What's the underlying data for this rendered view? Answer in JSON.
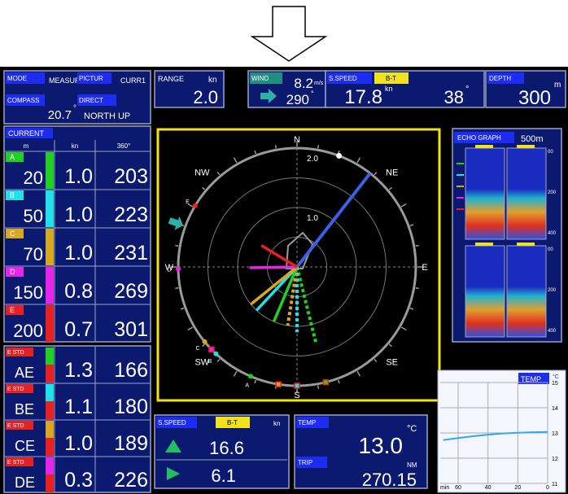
{
  "status": {
    "mode_label": "MODE",
    "mode": "MEASURE",
    "picture_label": "PICTUR",
    "picture": "CURR1",
    "compass_label": "COMPASS",
    "compass": "20.7",
    "compass_unit": "°",
    "direct_label": "DIRECT",
    "direct": "NORTH UP"
  },
  "range": {
    "label": "RANGE",
    "unit": "kn",
    "value": "2.0"
  },
  "wind": {
    "label": "WIND",
    "speed": "8.2",
    "speed_unit": "m/s",
    "direction": "290",
    "direction_unit": "°",
    "color": "#2cb0a8"
  },
  "ship_speed": {
    "label": "S.SPEED",
    "mode": "B-T",
    "speed": "17.8",
    "unit": "kn",
    "heading": "38",
    "heading_unit": "°",
    "heading_color": "#3a62e6"
  },
  "depth": {
    "label": "DEPTH",
    "unit": "m",
    "value": "300"
  },
  "current": {
    "title": "CURRENT",
    "columns": [
      "m",
      "kn",
      "360°"
    ],
    "rows": [
      {
        "label": "A",
        "depth": "20",
        "speed": "1.0",
        "direction": "203",
        "color": "#22d022"
      },
      {
        "label": "B",
        "depth": "50",
        "speed": "1.0",
        "direction": "223",
        "color": "#22e0e8"
      },
      {
        "label": "C",
        "depth": "70",
        "speed": "1.0",
        "direction": "231",
        "color": "#d8a820"
      },
      {
        "label": "D",
        "depth": "150",
        "speed": "0.8",
        "direction": "269",
        "color": "#e824e8"
      },
      {
        "label": "E",
        "depth": "200",
        "speed": "0.7",
        "direction": "301",
        "color": "#e82020"
      }
    ]
  },
  "error_std": {
    "rows": [
      {
        "tag": "E STD",
        "name": "AE",
        "speed": "1.3",
        "direction": "166",
        "color": "#22d022"
      },
      {
        "tag": "E STD",
        "name": "BE",
        "speed": "1.1",
        "direction": "180",
        "color": "#22e0e8"
      },
      {
        "tag": "E STD",
        "name": "CE",
        "speed": "1.0",
        "direction": "189",
        "color": "#d8a820"
      },
      {
        "tag": "E STD",
        "name": "DE",
        "speed": "0.3",
        "direction": "226",
        "color": "#e824e8"
      }
    ]
  },
  "polar": {
    "directions": [
      "N",
      "NE",
      "E",
      "SE",
      "S",
      "SW",
      "W",
      "NW"
    ],
    "ring_labels": [
      "2.0",
      "1.0"
    ]
  },
  "echo_graph": {
    "title": "ECHO GRAPH",
    "range": "500m",
    "depth_labels": [
      "00",
      "200",
      "400",
      "00",
      "200",
      "400"
    ]
  },
  "temp_graph": {
    "title": "TEMP",
    "unit": "°C",
    "xlabel": "min",
    "xlim": [
      72,
      0
    ],
    "xticks": [
      60,
      40,
      20,
      0
    ],
    "ylim": [
      11,
      15
    ],
    "yticks": [
      15,
      14,
      13,
      12,
      11
    ],
    "x": [
      70,
      60,
      50,
      40,
      30,
      20,
      10,
      0
    ],
    "values": [
      12.72,
      12.8,
      12.87,
      12.93,
      12.98,
      13.01,
      13.03,
      13.04
    ],
    "color": "#30a8f0"
  },
  "speed_panel": {
    "label": "S.SPEED",
    "mode": "B-T",
    "unit": "kn",
    "longitudinal": "16.6",
    "transverse": "6.1"
  },
  "trip_panel": {
    "temp_label": "TEMP",
    "temp_unit": "°C",
    "temp": "13.0",
    "trip_label": "TRIP",
    "trip_unit": "NM",
    "trip": "270.15"
  }
}
